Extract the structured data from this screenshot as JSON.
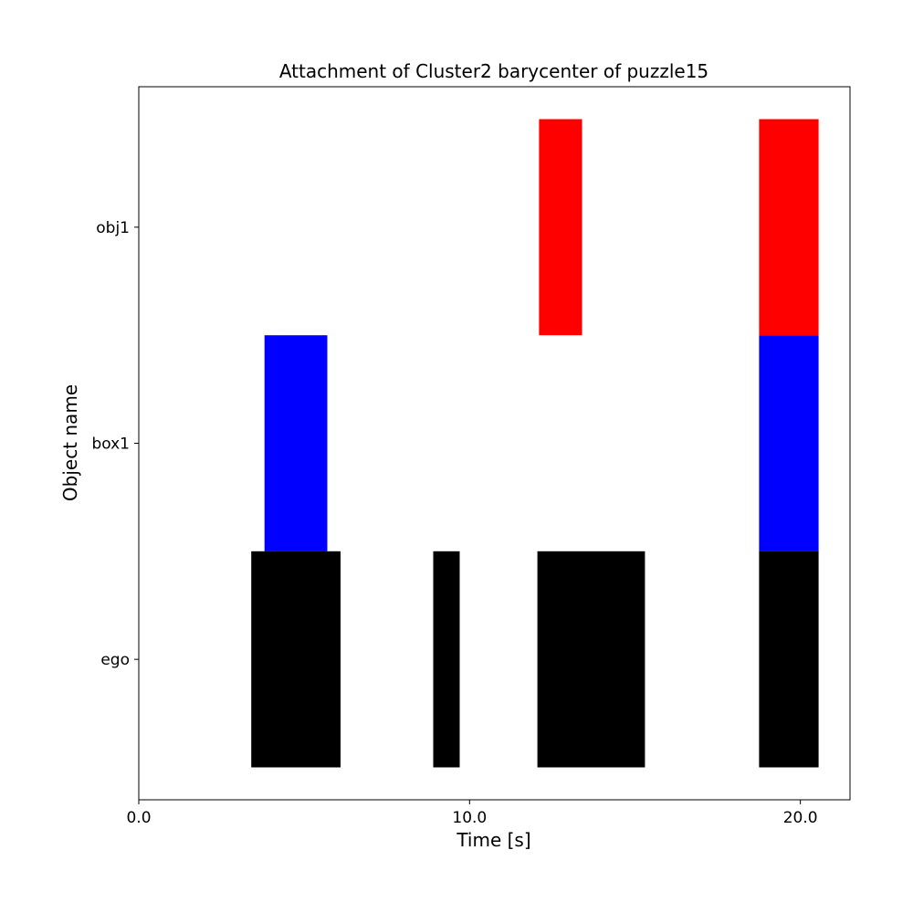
{
  "chart_data": {
    "type": "bar",
    "orientation": "horizontal-timeline",
    "title": "Attachment of Cluster2 barycenter of puzzle15",
    "xlabel": "Time [s]",
    "ylabel": "Object name",
    "xlim": [
      0.0,
      21.5
    ],
    "x_ticks": [
      0.0,
      10.0,
      20.0
    ],
    "x_tick_labels": [
      "0.0",
      "10.0",
      "20.0"
    ],
    "categories": [
      "ego",
      "box1",
      "obj1"
    ],
    "grid": false,
    "legend": "none",
    "series": [
      {
        "category": "ego",
        "color": "#000000",
        "segments": [
          [
            3.4,
            6.1
          ],
          [
            8.9,
            9.7
          ],
          [
            12.05,
            15.3
          ],
          [
            18.75,
            20.55
          ]
        ]
      },
      {
        "category": "box1",
        "color": "#0000ff",
        "segments": [
          [
            3.8,
            5.7
          ],
          [
            18.75,
            20.55
          ]
        ]
      },
      {
        "category": "obj1",
        "color": "#ff0000",
        "segments": [
          [
            12.1,
            13.4
          ],
          [
            18.75,
            20.55
          ]
        ]
      }
    ]
  }
}
